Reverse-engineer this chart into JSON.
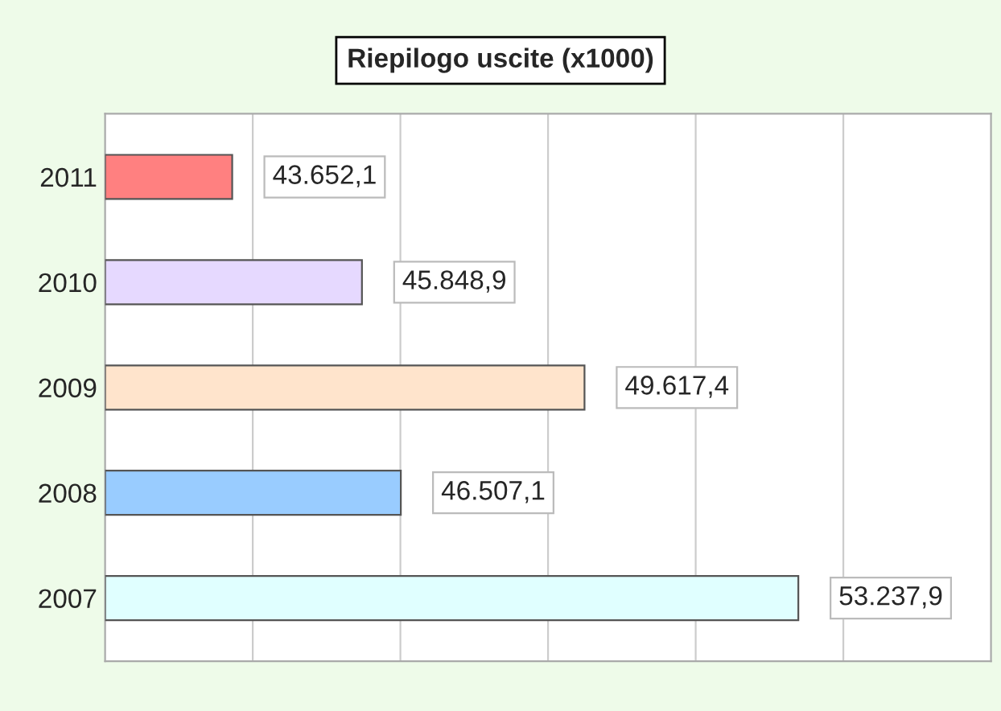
{
  "chart_data": {
    "type": "bar",
    "orientation": "horizontal",
    "title": "Riepilogo uscite (x1000)",
    "categories": [
      "2011",
      "2010",
      "2009",
      "2008",
      "2007"
    ],
    "values": [
      43652.1,
      45848.9,
      49617.4,
      46507.1,
      53237.9
    ],
    "value_labels": [
      "43.652,1",
      "45.848,9",
      "49.617,4",
      "46.507,1",
      "53.237,9"
    ],
    "colors": [
      "#ff8080",
      "#e6d9ff",
      "#ffe4cc",
      "#99ccff",
      "#e0ffff"
    ],
    "xlim": [
      41500,
      56500
    ],
    "xticks": [
      {
        "value": 44000,
        "label": null
      },
      {
        "value": 46500,
        "label": null
      },
      {
        "value": 49000,
        "label": null
      },
      {
        "value": 51500,
        "label": null
      },
      {
        "value": 54000,
        "label": null
      }
    ],
    "tick_labels": "y",
    "grid": "x",
    "legend": false
  }
}
